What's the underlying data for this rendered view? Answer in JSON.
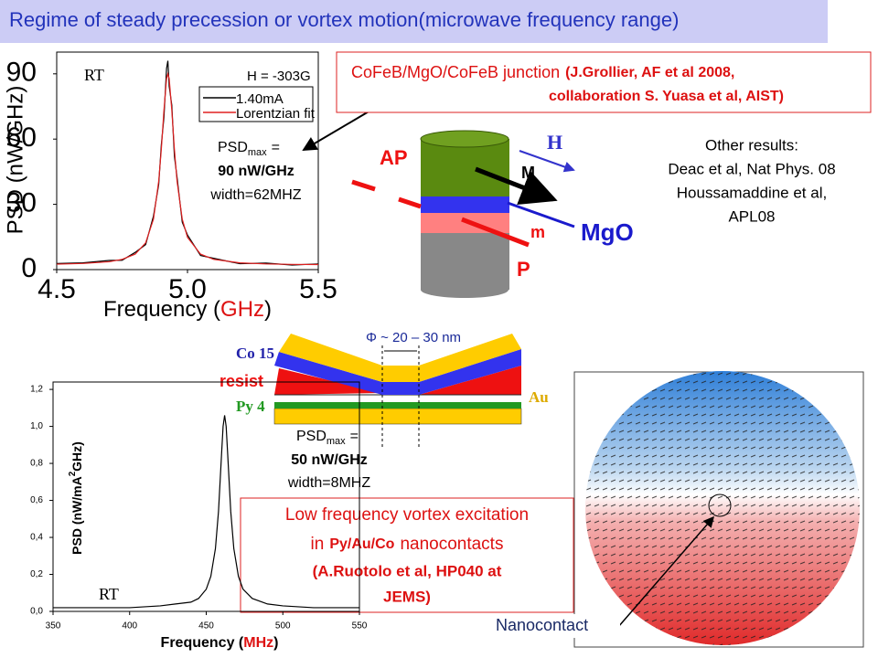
{
  "title": "Regime of steady precession or vortex motion(microwave frequency range)",
  "chart_data": [
    {
      "type": "line",
      "xlabel": [
        "Frequency (",
        "GHz",
        ")"
      ],
      "ylabel": "PSD (nW/GHz)",
      "xlim": [
        4.5,
        5.5
      ],
      "xticks": [
        4.5,
        {
          "value": 5,
          "label": "5.0"
        },
        5.5
      ],
      "ylim": [
        0,
        100
      ],
      "yticks": [
        0,
        30,
        60,
        90
      ],
      "legend": "upper right",
      "annotations": [
        "RT",
        "H = -303G"
      ],
      "x": [
        4.5,
        4.6,
        4.7,
        4.75,
        4.8,
        4.84,
        4.87,
        4.89,
        4.9,
        4.91,
        4.92,
        4.925,
        4.93,
        4.94,
        4.95,
        4.96,
        4.98,
        5.0,
        5.05,
        5.1,
        5.2,
        5.3,
        5.4,
        5.5
      ],
      "series": [
        {
          "name": "1.40mA",
          "color": "#000000",
          "values": [
            2.8,
            3.1,
            4.2,
            4.3,
            7.9,
            11.5,
            24.6,
            39.2,
            57.4,
            70.1,
            92.5,
            96,
            84.3,
            75.6,
            52.1,
            42.5,
            21.8,
            15.9,
            6.5,
            5.2,
            2.7,
            3.0,
            2.1,
            2.6
          ]
        },
        {
          "name": "Lorentzian fit",
          "color": "#e02020",
          "values": [
            2.5,
            2.8,
            3.6,
            4.7,
            7.1,
            12.3,
            23.2,
            40.7,
            55.3,
            73.3,
            87.8,
            90,
            87.8,
            73.3,
            55.3,
            40.7,
            23.2,
            14.8,
            7.1,
            4.7,
            3.1,
            2.6,
            2.4,
            2.3
          ]
        }
      ]
    },
    {
      "type": "line",
      "xlabel": [
        "Frequency (",
        "MHz",
        ")"
      ],
      "ylabel": [
        "PSD (nW/mA",
        "2",
        "GHz)"
      ],
      "xlim": [
        350,
        550
      ],
      "xticks": [
        350,
        400,
        450,
        500,
        550
      ],
      "ylim": [
        0,
        1.24
      ],
      "yticks": [
        {
          "value": 0,
          "label": "0,0"
        },
        {
          "value": 0.2,
          "label": "0,2"
        },
        {
          "value": 0.4,
          "label": "0,4"
        },
        {
          "value": 0.6,
          "label": "0,6"
        },
        {
          "value": 0.8,
          "label": "0,8"
        },
        {
          "value": 1,
          "label": "1,0"
        },
        {
          "value": 1.2,
          "label": "1,2"
        }
      ],
      "annotations": [
        "RT"
      ],
      "x": [
        350,
        380,
        400,
        420,
        430,
        440,
        445,
        450,
        453,
        456,
        458,
        460,
        461,
        462,
        463,
        464,
        466,
        468,
        471,
        474,
        480,
        490,
        500,
        520,
        550
      ],
      "series": [
        {
          "color": "#000000",
          "values": [
            0.02,
            0.02,
            0.02,
            0.03,
            0.04,
            0.05,
            0.07,
            0.12,
            0.19,
            0.34,
            0.54,
            0.85,
            1.0,
            1.06,
            1.0,
            0.85,
            0.54,
            0.34,
            0.19,
            0.12,
            0.07,
            0.04,
            0.03,
            0.02,
            0.02
          ]
        }
      ]
    }
  ],
  "psd_high": {
    "label": "PSD",
    "sub": "max",
    "eq": "=",
    "value": "90 nW/GHz",
    "width": "width=62MHZ"
  },
  "psd_low": {
    "label": "PSD",
    "sub": "max",
    "eq": "=",
    "value": "50 nW/GHz",
    "width": "width=8MHZ"
  },
  "junction": {
    "name": "CoFeB/MgO/CoFeB junction",
    "ref": [
      "(J.Grollier, AF et al 2008,",
      "collaboration S. Yuasa et al, AIST)"
    ]
  },
  "junction_diagram": {
    "H": "H",
    "AP": "AP",
    "M": "M",
    "MgO": "MgO",
    "m": "m",
    "P": "P"
  },
  "other_results": [
    "Other results:",
    "Deac et al, Nat Phys. 08",
    "Houssamaddine et al,",
    "APL08"
  ],
  "nanocontact_diagram": {
    "size": "Φ ~ 20 – 30 nm",
    "layers": [
      "Co 15",
      "resist",
      "Py 4",
      "Au"
    ]
  },
  "vortex_note": {
    "line1": "Low frequency vortex excitation",
    "line2": [
      "in",
      "Py/Au/Co",
      "nanocontacts"
    ],
    "ref": [
      "(A.Ruotolo et al, HP040 at",
      "JEMS)"
    ]
  },
  "vortex": {
    "label": "Nanocontact"
  }
}
